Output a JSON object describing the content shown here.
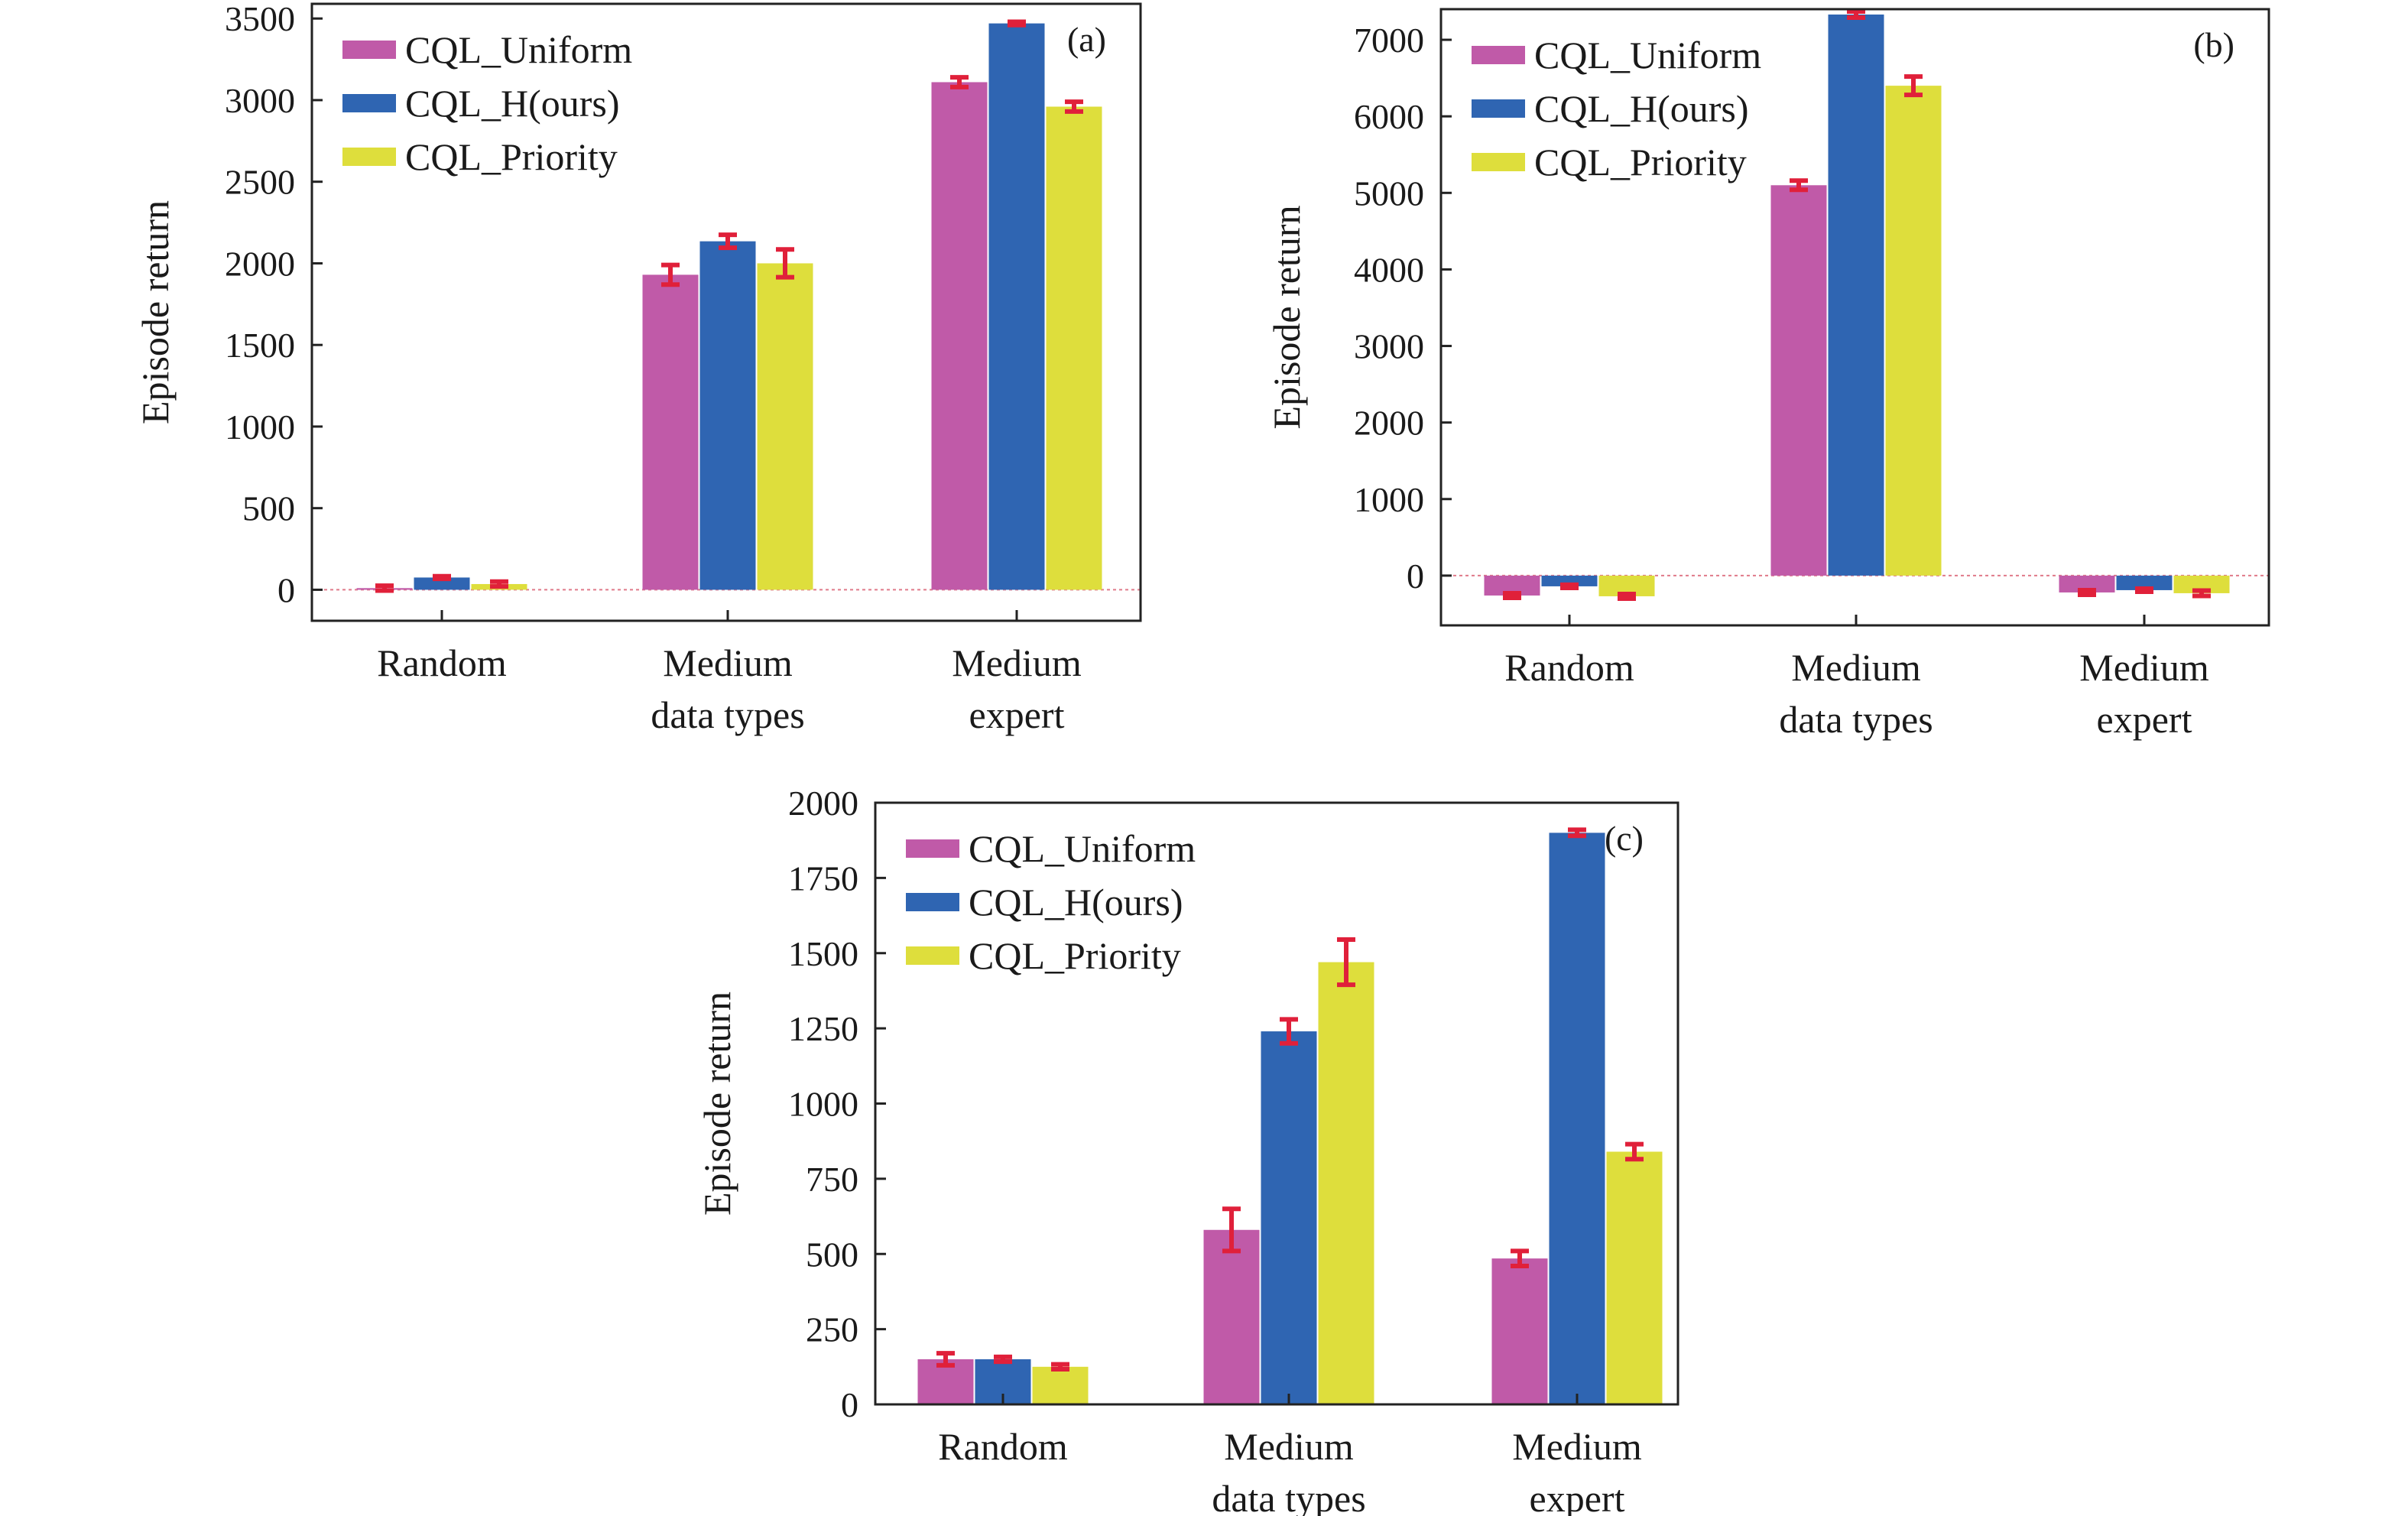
{
  "colors": {
    "CQL_Uniform": "#c05aa8",
    "CQL_H(ours)": "#2f65b2",
    "CQL_Priority": "#dede3c",
    "error_bar": "#e0203a"
  },
  "chart_data": [
    {
      "type": "bar",
      "panel_label": "(a)",
      "ylabel": "Episode return",
      "xlabel": "",
      "categories": [
        [
          "Random"
        ],
        [
          "Medium",
          "data types"
        ],
        [
          "Medium",
          "expert"
        ]
      ],
      "ylim": [
        -190,
        3590
      ],
      "yticks": [
        0,
        500,
        1000,
        1500,
        2000,
        2500,
        3000,
        3500
      ],
      "legend_position": "top-left",
      "grid": false,
      "series": [
        {
          "name": "CQL_Uniform",
          "values": [
            10,
            1930,
            3110
          ],
          "errors": [
            15,
            60,
            30
          ]
        },
        {
          "name": "CQL_H(ours)",
          "values": [
            75,
            2135,
            3470
          ],
          "errors": [
            8,
            40,
            10
          ]
        },
        {
          "name": "CQL_Priority",
          "values": [
            35,
            2000,
            2960
          ],
          "errors": [
            15,
            85,
            30
          ]
        }
      ]
    },
    {
      "type": "bar",
      "panel_label": "(b)",
      "ylabel": "Episode return",
      "xlabel": "",
      "categories": [
        [
          "Random"
        ],
        [
          "Medium",
          "data types"
        ],
        [
          "Medium",
          "expert"
        ]
      ],
      "ylim": [
        -650,
        7400
      ],
      "yticks": [
        0,
        1000,
        2000,
        3000,
        4000,
        5000,
        6000,
        7000
      ],
      "legend_position": "top-left",
      "grid": false,
      "series": [
        {
          "name": "CQL_Uniform",
          "values": [
            -260,
            5100,
            -220
          ],
          "errors": [
            30,
            60,
            30
          ]
        },
        {
          "name": "CQL_H(ours)",
          "values": [
            -140,
            7330,
            -190
          ],
          "errors": [
            20,
            40,
            20
          ]
        },
        {
          "name": "CQL_Priority",
          "values": [
            -270,
            6400,
            -230
          ],
          "errors": [
            30,
            120,
            35
          ]
        }
      ]
    },
    {
      "type": "bar",
      "panel_label": "(c)",
      "ylabel": "Episode return",
      "xlabel": "",
      "categories": [
        [
          "Random"
        ],
        [
          "Medium",
          "data types"
        ],
        [
          "Medium",
          "expert"
        ]
      ],
      "ylim": [
        0,
        2000
      ],
      "yticks": [
        0,
        250,
        500,
        750,
        1000,
        1250,
        1500,
        1750,
        2000
      ],
      "legend_position": "top-left",
      "grid": false,
      "series": [
        {
          "name": "CQL_Uniform",
          "values": [
            150,
            580,
            485
          ],
          "errors": [
            20,
            70,
            25
          ]
        },
        {
          "name": "CQL_H(ours)",
          "values": [
            150,
            1240,
            1900
          ],
          "errors": [
            8,
            40,
            10
          ]
        },
        {
          "name": "CQL_Priority",
          "values": [
            125,
            1470,
            840
          ],
          "errors": [
            8,
            75,
            25
          ]
        }
      ]
    }
  ]
}
